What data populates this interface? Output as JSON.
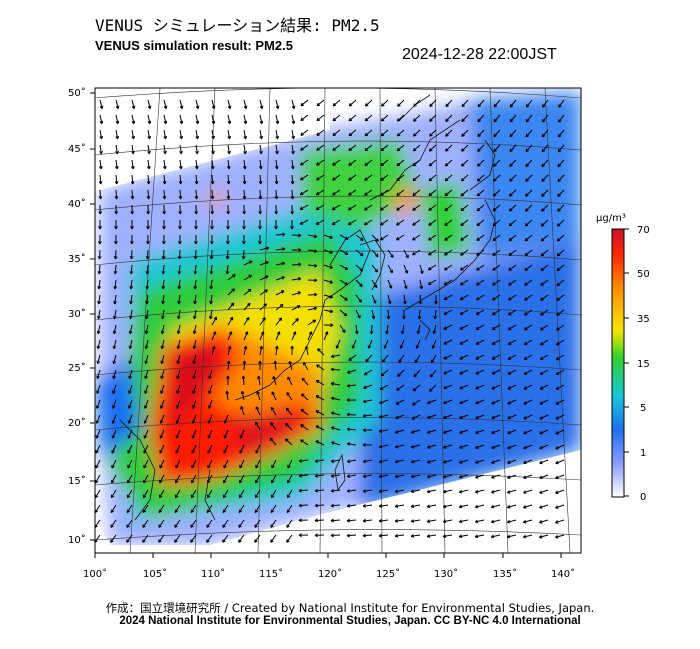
{
  "header": {
    "title_jp": "VENUS シミュレーション結果: PM2.5",
    "title_en": "VENUS simulation result: PM2.5",
    "timestamp": "2024-12-28 22:00JST"
  },
  "map": {
    "lon_ticks": [
      "100˚",
      "105˚",
      "110˚",
      "115˚",
      "120˚",
      "125˚",
      "130˚",
      "135˚",
      "140˚"
    ],
    "lat_ticks": [
      "50˚",
      "45˚",
      "40˚",
      "35˚",
      "30˚",
      "25˚",
      "20˚",
      "15˚",
      "10˚"
    ],
    "lon_range": [
      100,
      142
    ],
    "lat_range": [
      9,
      51
    ],
    "variable": "PM2.5"
  },
  "colorbar": {
    "unit": "µg/m³",
    "labels": [
      "70",
      "50",
      "35",
      "15",
      "5",
      "1",
      "0"
    ],
    "levels": [
      70,
      50,
      35,
      15,
      5,
      1,
      0
    ],
    "colors": [
      "#c8102e",
      "#ff2a00",
      "#ff8c00",
      "#f5e600",
      "#2fd02f",
      "#18c8d8",
      "#1f6ff0",
      "#8fa0ff",
      "#ffffff"
    ]
  },
  "footer": {
    "credit_line": "作成：国立環境研究所 / Created by National Institute for Environmental Studies, Japan.",
    "copyright_line": "2024 National Institute for Environmental Studies, Japan. CC BY-NC 4.0 International"
  }
}
